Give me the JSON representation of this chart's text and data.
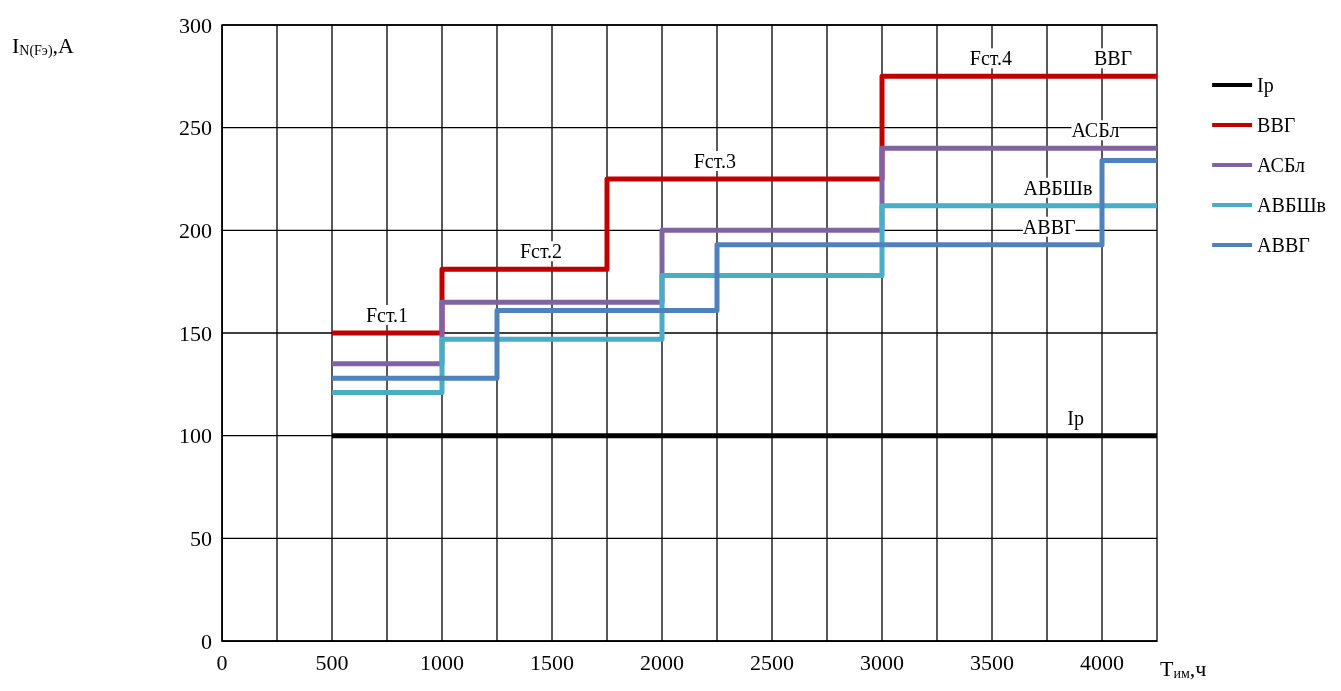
{
  "chart_data": {
    "type": "step",
    "xlabel": "T$_{им}$,ч",
    "ylabel": "I$_{N(Fэ)}$,А",
    "xlim": [
      0,
      4250
    ],
    "ylim": [
      0,
      300
    ],
    "xticks": [
      0,
      {
        "value": 250,
        "label": null
      },
      500,
      {
        "value": 750,
        "label": null
      },
      1000,
      {
        "value": 1250,
        "label": null
      },
      1500,
      {
        "value": 1750,
        "label": null
      },
      2000,
      {
        "value": 2250,
        "label": null
      },
      2500,
      {
        "value": 2750,
        "label": null
      },
      3000,
      {
        "value": 3250,
        "label": null
      },
      3500,
      {
        "value": 3750,
        "label": null
      },
      4000
    ],
    "yticks": [
      0,
      50,
      100,
      150,
      200,
      250,
      300
    ],
    "grid": true,
    "legend": "right",
    "marker": "none",
    "line_style": "solid",
    "series": [
      {
        "name": "Ip",
        "color": "#000000",
        "x": [
          500,
          4250
        ],
        "values": [
          100,
          100
        ]
      },
      {
        "name": "ВВГ",
        "color": "#c00000",
        "x": [
          500,
          1000,
          1750,
          3000,
          4250
        ],
        "values": [
          150,
          181,
          225,
          275,
          275
        ]
      },
      {
        "name": "АСБл",
        "color": "#8064a2",
        "x": [
          500,
          1000,
          2000,
          3000,
          4250
        ],
        "values": [
          135,
          165,
          200,
          240,
          240
        ]
      },
      {
        "name": "АВБШв",
        "color": "#4bacc6",
        "x": [
          500,
          1000,
          2000,
          3000,
          4250
        ],
        "values": [
          121,
          147,
          178,
          212,
          212
        ]
      },
      {
        "name": "АВВГ",
        "color": "#4f81bd",
        "x": [
          500,
          1250,
          2250,
          4000,
          4250
        ],
        "values": [
          128,
          161,
          193,
          234,
          234
        ]
      }
    ],
    "annotations": [
      {
        "text": "Fст.1",
        "x": 750,
        "y": 150
      },
      {
        "text": "Fст.2",
        "x": 1450,
        "y": 181
      },
      {
        "text": "Fст.3",
        "x": 2240,
        "y": 225
      },
      {
        "text": "Fст.4",
        "x": 3495,
        "y": 275
      },
      {
        "text": "ВВГ",
        "x": 4050,
        "y": 275
      },
      {
        "text": "АСБл",
        "x": 3970,
        "y": 240
      },
      {
        "text": "АВБШв",
        "x": 3800,
        "y": 212
      },
      {
        "text": "АВВГ",
        "x": 3760,
        "y": 193
      },
      {
        "text": "Ip",
        "x": 3880,
        "y": 100
      }
    ]
  }
}
